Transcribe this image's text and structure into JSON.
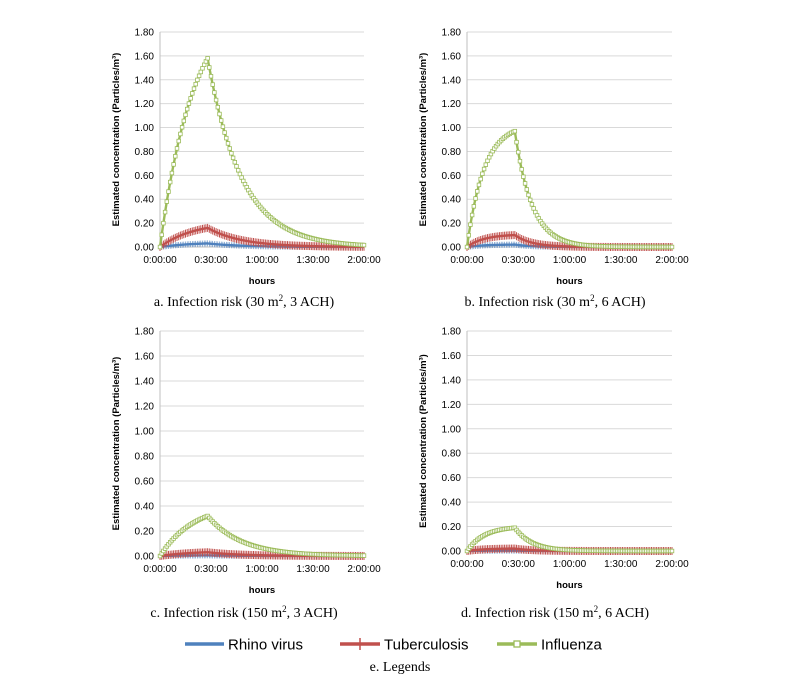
{
  "colors": {
    "rhino": "#4f81bd",
    "tuberculosis": "#c0504d",
    "influenza": "#9bbb59",
    "grid": "#d9d9d9",
    "axis": "#bfbfbf"
  },
  "x_ticks": [
    "0:00:00",
    "0:30:00",
    "1:00:00",
    "1:30:00",
    "2:00:00"
  ],
  "y_ticks": [
    "0.00",
    "0.20",
    "0.40",
    "0.60",
    "0.80",
    "1.00",
    "1.20",
    "1.40",
    "1.60",
    "1.80"
  ],
  "xlabel": "hours",
  "ylabel": "Estimated concentration (Particles/m³)",
  "captions": [
    [
      "a. Infection risk (30 m",
      "2",
      ", 3 ACH)"
    ],
    [
      "b. Infection risk (30 m",
      "2",
      ", 6 ACH)"
    ],
    [
      "c. Infection risk (150 m",
      "2",
      ", 3 ACH)"
    ],
    [
      "d. Infection risk (150 m",
      "2",
      ", 6 ACH)"
    ]
  ],
  "legend": {
    "items": [
      "Rhino virus",
      "Tuberculosis",
      "Influenza"
    ],
    "caption": "e. Legends"
  },
  "chart_data": [
    {
      "type": "line",
      "title": "",
      "xlim": [
        0,
        120
      ],
      "ylim": [
        0,
        1.8
      ],
      "grid": true,
      "series": [
        {
          "name": "Rhino virus",
          "peak": 0.03,
          "peak_time": 28,
          "decay_rate": 0.05
        },
        {
          "name": "Tuberculosis",
          "peak": 0.16,
          "peak_time": 28,
          "decay_rate": 0.05
        },
        {
          "name": "Influenza",
          "peak": 1.58,
          "peak_time": 28,
          "decay_rate": 0.05
        }
      ]
    },
    {
      "type": "line",
      "title": "",
      "xlim": [
        0,
        120
      ],
      "ylim": [
        0,
        1.8
      ],
      "grid": true,
      "series": [
        {
          "name": "Rhino virus",
          "peak": 0.02,
          "peak_time": 28,
          "decay_rate": 0.1
        },
        {
          "name": "Tuberculosis",
          "peak": 0.1,
          "peak_time": 28,
          "decay_rate": 0.1
        },
        {
          "name": "Influenza",
          "peak": 0.97,
          "peak_time": 28,
          "decay_rate": 0.1
        }
      ]
    },
    {
      "type": "line",
      "title": "",
      "xlim": [
        0,
        120
      ],
      "ylim": [
        0,
        1.8
      ],
      "grid": true,
      "series": [
        {
          "name": "Rhino virus",
          "peak": 0.005,
          "peak_time": 28,
          "decay_rate": 0.05
        },
        {
          "name": "Tuberculosis",
          "peak": 0.03,
          "peak_time": 28,
          "decay_rate": 0.05
        },
        {
          "name": "Influenza",
          "peak": 0.32,
          "peak_time": 28,
          "decay_rate": 0.05
        }
      ]
    },
    {
      "type": "line",
      "title": "",
      "xlim": [
        0,
        120
      ],
      "ylim": [
        0,
        1.8
      ],
      "grid": true,
      "series": [
        {
          "name": "Rhino virus",
          "peak": 0.003,
          "peak_time": 28,
          "decay_rate": 0.1
        },
        {
          "name": "Tuberculosis",
          "peak": 0.02,
          "peak_time": 28,
          "decay_rate": 0.1
        },
        {
          "name": "Influenza",
          "peak": 0.19,
          "peak_time": 28,
          "decay_rate": 0.1
        }
      ]
    }
  ]
}
